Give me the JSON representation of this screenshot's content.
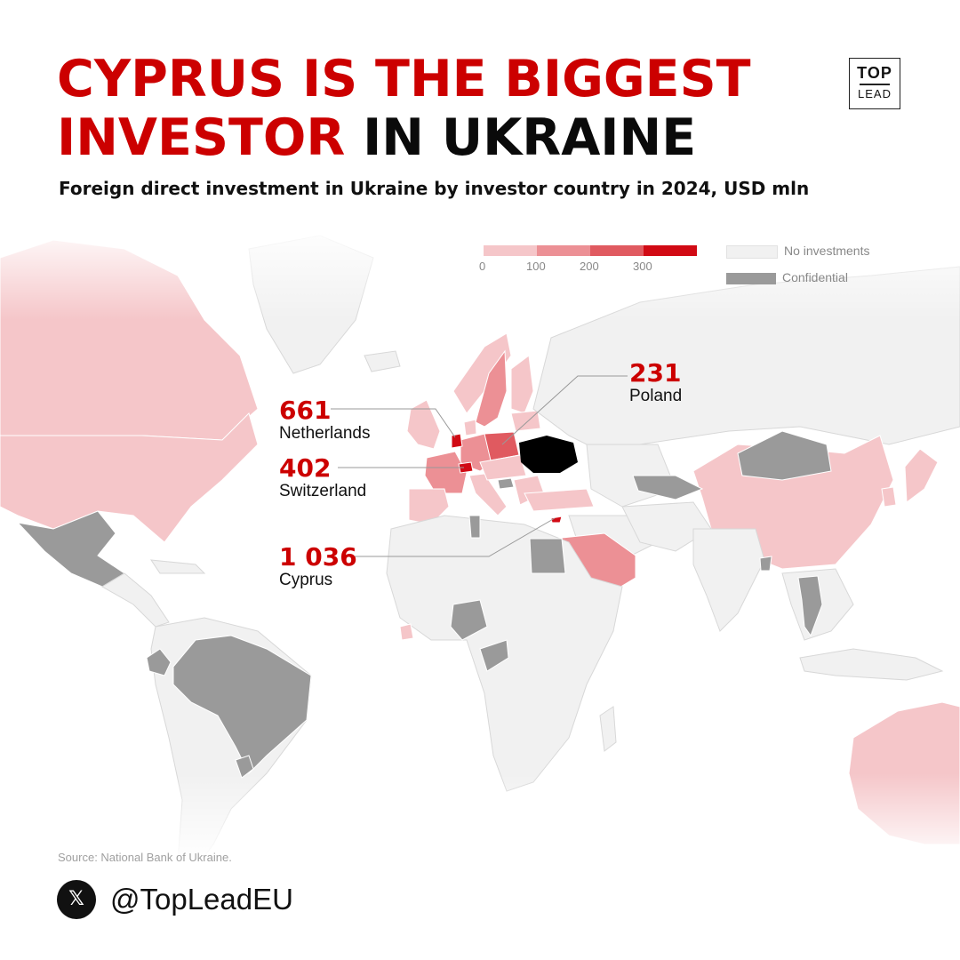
{
  "title": {
    "line1": "CYPRUS IS THE BIGGEST",
    "line2_red": "INVESTOR",
    "line2_black": " IN UKRAINE"
  },
  "subtitle": "Foreign direct investment in Ukraine by investor country in 2024, USD mln",
  "logo": {
    "top": "TOP",
    "bottom": "LEAD"
  },
  "legend": {
    "scale_ticks": [
      "0",
      "100",
      "200",
      "300"
    ],
    "scale_colors": [
      "#f5c6c9",
      "#ec9095",
      "#e05a60",
      "#d10a14"
    ],
    "no_investments_label": "No investments",
    "no_investments_color": "#f1f1f1",
    "confidential_label": "Confidential",
    "confidential_color": "#9a9a9a"
  },
  "highlight_color": "#cc0000",
  "ukraine_color": "#000000",
  "callouts": {
    "netherlands": {
      "value": "661",
      "name": "Netherlands"
    },
    "switzerland": {
      "value": "402",
      "name": "Switzerland"
    },
    "poland": {
      "value": "231",
      "name": "Poland"
    },
    "cyprus": {
      "value": "1 036",
      "name": "Cyprus"
    }
  },
  "source": "Source: National Bank of Ukraine.",
  "social": {
    "icon": "x-logo-icon",
    "handle": "@TopLeadEU"
  }
}
